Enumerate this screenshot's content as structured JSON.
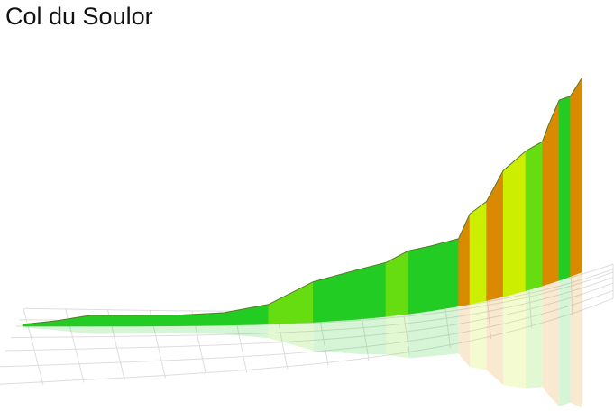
{
  "chart_data": {
    "type": "profile3d",
    "title": "Col du Soulor",
    "x": [
      0,
      6,
      12,
      20,
      28,
      36,
      44,
      52,
      60,
      65,
      69,
      73,
      78,
      80,
      83,
      86,
      90,
      93,
      94,
      96,
      98,
      100
    ],
    "values": [
      2,
      6,
      12,
      12,
      12,
      14,
      22,
      45,
      55,
      60,
      70,
      72,
      75,
      100,
      110,
      140,
      155,
      160,
      175,
      200,
      200,
      215
    ],
    "xlim": [
      0,
      100
    ],
    "colors": [
      "#22cc22",
      "#66dd11",
      "#ccee00",
      "#e8b800",
      "#d98a00"
    ],
    "grid": true
  }
}
